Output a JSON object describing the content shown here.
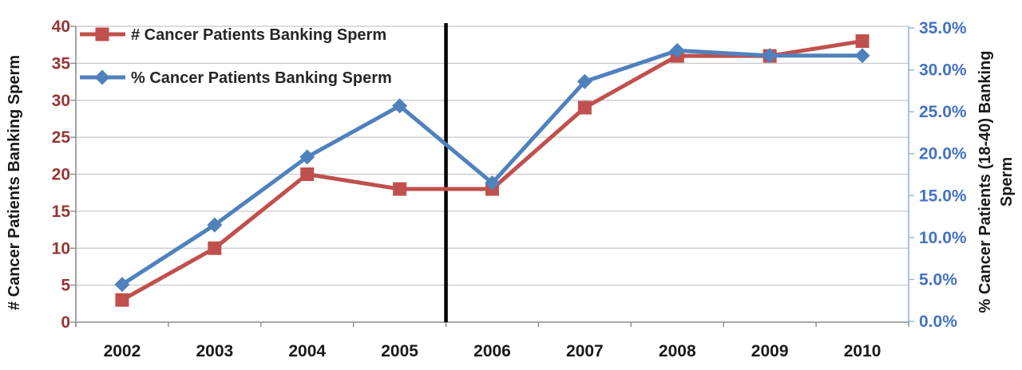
{
  "chart_data": {
    "type": "line",
    "title": "",
    "categories": [
      "2002",
      "2003",
      "2004",
      "2005",
      "2006",
      "2007",
      "2008",
      "2009",
      "2010"
    ],
    "series": [
      {
        "name": "# Cancer Patients Banking Sperm",
        "axis": "left",
        "color": "#C0504D",
        "marker": "square",
        "values": [
          3,
          10,
          20,
          18,
          18,
          29,
          36,
          36,
          38
        ]
      },
      {
        "name": "% Cancer Patients Banking Sperm",
        "axis": "right",
        "color": "#4F81BD",
        "marker": "diamond",
        "values": [
          4.4,
          11.5,
          19.6,
          25.7,
          16.5,
          28.6,
          32.3,
          31.7,
          31.7
        ]
      }
    ],
    "left_axis": {
      "title": "# Cancer Patients Banking Sperm",
      "min": 0,
      "max": 40,
      "step": 5,
      "tick_labels": [
        "40",
        "35",
        "30",
        "25",
        "20",
        "15",
        "10",
        "5",
        "0"
      ],
      "tick_color": "#943634",
      "title_color": "#1A1A1A"
    },
    "right_axis": {
      "title": "% Cancer Patients (18-40) Banking Sperm",
      "title_lines": [
        "% Cancer Patients (18-40) Banking",
        "Sperm"
      ],
      "min": 0,
      "max": 35,
      "step": 5,
      "tick_labels": [
        "35.0%",
        "30.0%",
        "25.0%",
        "20.0%",
        "15.0%",
        "10.0%",
        "5.0%",
        "0.0%"
      ],
      "tick_color": "#4472C4",
      "title_color": "#1A1A1A"
    },
    "x_axis": {
      "labels": [
        "2002",
        "2003",
        "2004",
        "2005",
        "2006",
        "2007",
        "2008",
        "2009",
        "2010"
      ],
      "label_color": "#1A1A1A"
    },
    "legend": {
      "position": "top-left",
      "text_color": "#262626",
      "entries": [
        "# Cancer Patients Banking Sperm",
        "% Cancer Patients Banking Sperm"
      ]
    },
    "annotations": [
      {
        "type": "vertical_line",
        "between": [
          "2005",
          "2006"
        ],
        "color": "#000000"
      }
    ],
    "grid": {
      "show": true,
      "color": "#C8C8C8"
    },
    "axis_line_colors": {
      "left": "#8C8C8C",
      "bottom": "#8C8C8C",
      "right": "#95B3D7"
    }
  }
}
